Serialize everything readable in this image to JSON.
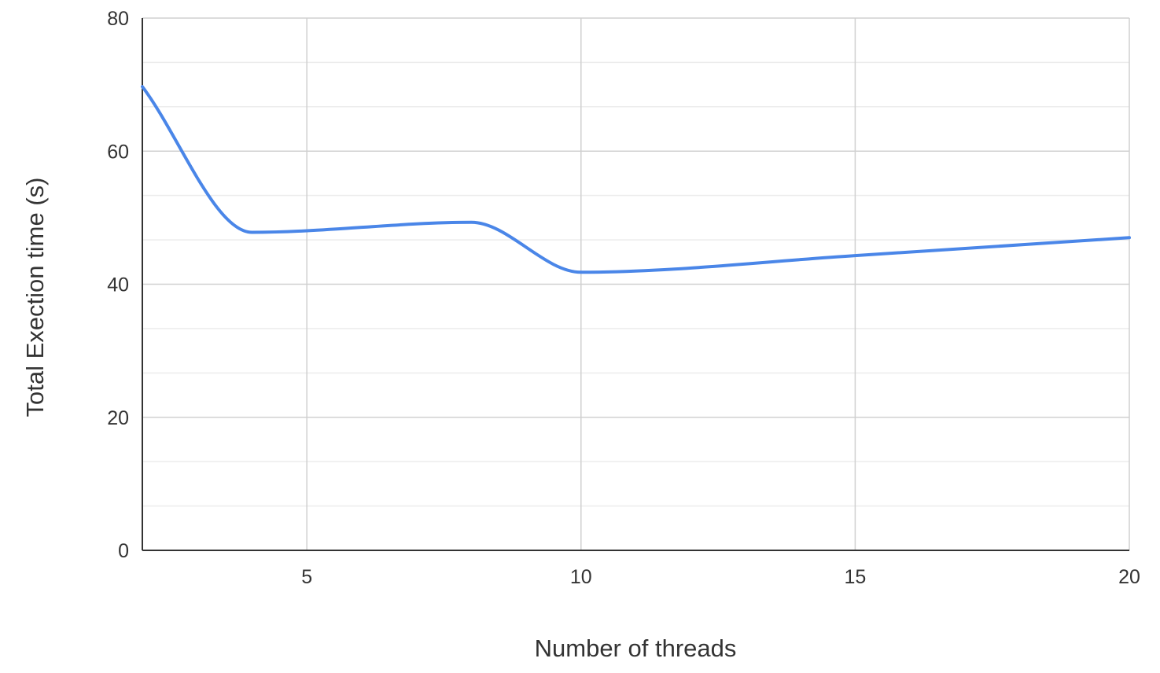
{
  "colors": {
    "series_line": "#4a86e8",
    "major_grid": "#d0d0d0",
    "minor_grid": "#ececec",
    "axis_line": "#333333",
    "text": "#333333"
  },
  "chart_data": {
    "type": "line",
    "xlabel": "Number of threads",
    "ylabel": "Total Exection time (s)",
    "xlim": [
      2,
      20
    ],
    "ylim": [
      0,
      80
    ],
    "x_ticks": [
      5,
      10,
      15,
      20
    ],
    "y_ticks": [
      0,
      20,
      40,
      60,
      80
    ],
    "y_minor_step": 6.667,
    "grid": true,
    "smooth": true,
    "series": [
      {
        "x": [
          2,
          4,
          8,
          10,
          15,
          20
        ],
        "y": [
          69.7,
          47.8,
          49.3,
          41.8,
          44.3,
          47.0
        ]
      }
    ]
  }
}
